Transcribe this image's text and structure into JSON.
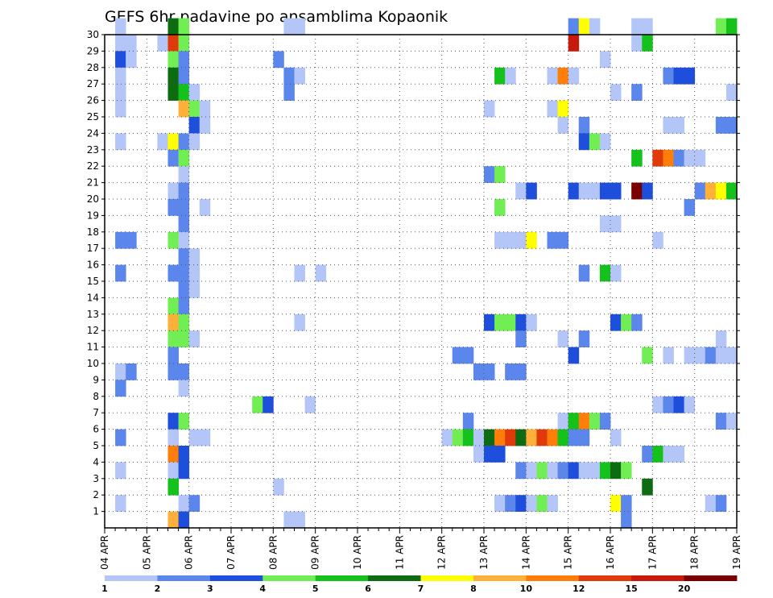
{
  "chart_data": {
    "type": "heatmap",
    "title": "GEFS 6hr padavine po ansamblima Kopaonik",
    "xlabel": "",
    "ylabel": "",
    "x_tick_labels": [
      "04 APR",
      "05 APR",
      "06 APR",
      "07 APR",
      "08 APR",
      "09 APR",
      "10 APR",
      "11 APR",
      "12 APR",
      "13 APR",
      "14 APR",
      "15 APR",
      "16 APR",
      "17 APR",
      "18 APR",
      "19 APR"
    ],
    "xlim_steps": [
      0,
      60
    ],
    "y_tick_labels": [
      "1",
      "2",
      "3",
      "4",
      "5",
      "6",
      "7",
      "8",
      "9",
      "10",
      "11",
      "12",
      "13",
      "14",
      "15",
      "16",
      "17",
      "18",
      "19",
      "20",
      "21",
      "22",
      "23",
      "24",
      "25",
      "26",
      "27",
      "28",
      "29",
      "30"
    ],
    "ylim": [
      0,
      30
    ],
    "grid": true,
    "colorbar": {
      "bounds": [
        1,
        2,
        3,
        4,
        5,
        6,
        7,
        8,
        10,
        12,
        15,
        20
      ],
      "labels": [
        "1",
        "2",
        "3",
        "4",
        "5",
        "6",
        "7",
        "8",
        "10",
        "12",
        "15",
        "20"
      ],
      "colors": [
        "#b3c6f7",
        "#5b86ec",
        "#1e4fdc",
        "#72ee55",
        "#14c21b",
        "#0d6b12",
        "#ffff00",
        "#ffb03b",
        "#ff7e0a",
        "#e03a0a",
        "#c81a0a",
        "#7a0000"
      ]
    },
    "cells": [
      {
        "m": 30,
        "t": 1,
        "c": 1
      },
      {
        "m": 30,
        "t": 6,
        "c": 6
      },
      {
        "m": 30,
        "t": 7,
        "c": 4
      },
      {
        "m": 30,
        "t": 17,
        "c": 1
      },
      {
        "m": 30,
        "t": 18,
        "c": 1
      },
      {
        "m": 30,
        "t": 44,
        "c": 2
      },
      {
        "m": 30,
        "t": 45,
        "c": 7
      },
      {
        "m": 30,
        "t": 46,
        "c": 1
      },
      {
        "m": 30,
        "t": 50,
        "c": 1
      },
      {
        "m": 30,
        "t": 51,
        "c": 1
      },
      {
        "m": 30,
        "t": 58,
        "c": 4
      },
      {
        "m": 30,
        "t": 59,
        "c": 5
      },
      {
        "m": 29,
        "t": 1,
        "c": 1
      },
      {
        "m": 29,
        "t": 2,
        "c": 1
      },
      {
        "m": 29,
        "t": 5,
        "c": 1
      },
      {
        "m": 29,
        "t": 6,
        "c": 10
      },
      {
        "m": 29,
        "t": 7,
        "c": 4
      },
      {
        "m": 29,
        "t": 44,
        "c": 11
      },
      {
        "m": 29,
        "t": 50,
        "c": 1
      },
      {
        "m": 29,
        "t": 51,
        "c": 5
      },
      {
        "m": 28,
        "t": 1,
        "c": 3
      },
      {
        "m": 28,
        "t": 2,
        "c": 1
      },
      {
        "m": 28,
        "t": 6,
        "c": 4
      },
      {
        "m": 28,
        "t": 7,
        "c": 2
      },
      {
        "m": 28,
        "t": 16,
        "c": 2
      },
      {
        "m": 28,
        "t": 47,
        "c": 1
      },
      {
        "m": 27,
        "t": 1,
        "c": 1
      },
      {
        "m": 27,
        "t": 6,
        "c": 6
      },
      {
        "m": 27,
        "t": 7,
        "c": 2
      },
      {
        "m": 27,
        "t": 17,
        "c": 2
      },
      {
        "m": 27,
        "t": 18,
        "c": 1
      },
      {
        "m": 27,
        "t": 37,
        "c": 5
      },
      {
        "m": 27,
        "t": 38,
        "c": 1
      },
      {
        "m": 27,
        "t": 42,
        "c": 1
      },
      {
        "m": 27,
        "t": 43,
        "c": 9
      },
      {
        "m": 27,
        "t": 44,
        "c": 1
      },
      {
        "m": 27,
        "t": 53,
        "c": 2
      },
      {
        "m": 27,
        "t": 54,
        "c": 3
      },
      {
        "m": 27,
        "t": 55,
        "c": 3
      },
      {
        "m": 26,
        "t": 1,
        "c": 1
      },
      {
        "m": 26,
        "t": 6,
        "c": 6
      },
      {
        "m": 26,
        "t": 7,
        "c": 5
      },
      {
        "m": 26,
        "t": 8,
        "c": 1
      },
      {
        "m": 26,
        "t": 17,
        "c": 2
      },
      {
        "m": 26,
        "t": 48,
        "c": 1
      },
      {
        "m": 26,
        "t": 50,
        "c": 2
      },
      {
        "m": 26,
        "t": 59,
        "c": 1
      },
      {
        "m": 25,
        "t": 1,
        "c": 1
      },
      {
        "m": 25,
        "t": 7,
        "c": 8
      },
      {
        "m": 25,
        "t": 8,
        "c": 4
      },
      {
        "m": 25,
        "t": 9,
        "c": 1
      },
      {
        "m": 25,
        "t": 36,
        "c": 1
      },
      {
        "m": 25,
        "t": 42,
        "c": 1
      },
      {
        "m": 25,
        "t": 43,
        "c": 7
      },
      {
        "m": 24,
        "t": 8,
        "c": 3
      },
      {
        "m": 24,
        "t": 9,
        "c": 1
      },
      {
        "m": 24,
        "t": 43,
        "c": 1
      },
      {
        "m": 24,
        "t": 45,
        "c": 2
      },
      {
        "m": 24,
        "t": 53,
        "c": 1
      },
      {
        "m": 24,
        "t": 54,
        "c": 1
      },
      {
        "m": 24,
        "t": 58,
        "c": 2
      },
      {
        "m": 24,
        "t": 59,
        "c": 2
      },
      {
        "m": 23,
        "t": 1,
        "c": 1
      },
      {
        "m": 23,
        "t": 5,
        "c": 1
      },
      {
        "m": 23,
        "t": 6,
        "c": 7
      },
      {
        "m": 23,
        "t": 7,
        "c": 2
      },
      {
        "m": 23,
        "t": 8,
        "c": 1
      },
      {
        "m": 23,
        "t": 45,
        "c": 3
      },
      {
        "m": 23,
        "t": 46,
        "c": 4
      },
      {
        "m": 23,
        "t": 47,
        "c": 1
      },
      {
        "m": 22,
        "t": 6,
        "c": 2
      },
      {
        "m": 22,
        "t": 7,
        "c": 4
      },
      {
        "m": 22,
        "t": 50,
        "c": 5
      },
      {
        "m": 22,
        "t": 52,
        "c": 10
      },
      {
        "m": 22,
        "t": 53,
        "c": 9
      },
      {
        "m": 22,
        "t": 54,
        "c": 2
      },
      {
        "m": 22,
        "t": 55,
        "c": 1
      },
      {
        "m": 22,
        "t": 56,
        "c": 1
      },
      {
        "m": 21,
        "t": 7,
        "c": 1
      },
      {
        "m": 21,
        "t": 36,
        "c": 2
      },
      {
        "m": 21,
        "t": 37,
        "c": 4
      },
      {
        "m": 20,
        "t": 6,
        "c": 1
      },
      {
        "m": 20,
        "t": 7,
        "c": 2
      },
      {
        "m": 20,
        "t": 39,
        "c": 1
      },
      {
        "m": 20,
        "t": 40,
        "c": 3
      },
      {
        "m": 20,
        "t": 44,
        "c": 3
      },
      {
        "m": 20,
        "t": 45,
        "c": 1
      },
      {
        "m": 20,
        "t": 46,
        "c": 1
      },
      {
        "m": 20,
        "t": 47,
        "c": 3
      },
      {
        "m": 20,
        "t": 48,
        "c": 3
      },
      {
        "m": 20,
        "t": 50,
        "c": 12
      },
      {
        "m": 20,
        "t": 51,
        "c": 3
      },
      {
        "m": 20,
        "t": 56,
        "c": 2
      },
      {
        "m": 20,
        "t": 57,
        "c": 8
      },
      {
        "m": 20,
        "t": 58,
        "c": 7
      },
      {
        "m": 20,
        "t": 59,
        "c": 5
      },
      {
        "m": 19,
        "t": 6,
        "c": 2
      },
      {
        "m": 19,
        "t": 7,
        "c": 2
      },
      {
        "m": 19,
        "t": 9,
        "c": 1
      },
      {
        "m": 19,
        "t": 37,
        "c": 4
      },
      {
        "m": 19,
        "t": 55,
        "c": 2
      },
      {
        "m": 18,
        "t": 7,
        "c": 2
      },
      {
        "m": 18,
        "t": 47,
        "c": 1
      },
      {
        "m": 18,
        "t": 48,
        "c": 1
      },
      {
        "m": 17,
        "t": 1,
        "c": 2
      },
      {
        "m": 17,
        "t": 2,
        "c": 2
      },
      {
        "m": 17,
        "t": 6,
        "c": 4
      },
      {
        "m": 17,
        "t": 7,
        "c": 1
      },
      {
        "m": 17,
        "t": 37,
        "c": 1
      },
      {
        "m": 17,
        "t": 38,
        "c": 1
      },
      {
        "m": 17,
        "t": 39,
        "c": 1
      },
      {
        "m": 17,
        "t": 40,
        "c": 7
      },
      {
        "m": 17,
        "t": 42,
        "c": 2
      },
      {
        "m": 17,
        "t": 43,
        "c": 2
      },
      {
        "m": 17,
        "t": 52,
        "c": 1
      },
      {
        "m": 16,
        "t": 7,
        "c": 2
      },
      {
        "m": 16,
        "t": 8,
        "c": 1
      },
      {
        "m": 15,
        "t": 1,
        "c": 2
      },
      {
        "m": 15,
        "t": 6,
        "c": 2
      },
      {
        "m": 15,
        "t": 7,
        "c": 2
      },
      {
        "m": 15,
        "t": 8,
        "c": 1
      },
      {
        "m": 15,
        "t": 18,
        "c": 1
      },
      {
        "m": 15,
        "t": 20,
        "c": 1
      },
      {
        "m": 15,
        "t": 45,
        "c": 2
      },
      {
        "m": 15,
        "t": 47,
        "c": 5
      },
      {
        "m": 15,
        "t": 48,
        "c": 1
      },
      {
        "m": 14,
        "t": 7,
        "c": 2
      },
      {
        "m": 14,
        "t": 8,
        "c": 1
      },
      {
        "m": 13,
        "t": 6,
        "c": 4
      },
      {
        "m": 13,
        "t": 7,
        "c": 2
      },
      {
        "m": 12,
        "t": 6,
        "c": 8
      },
      {
        "m": 12,
        "t": 7,
        "c": 4
      },
      {
        "m": 12,
        "t": 18,
        "c": 1
      },
      {
        "m": 12,
        "t": 36,
        "c": 3
      },
      {
        "m": 12,
        "t": 37,
        "c": 4
      },
      {
        "m": 12,
        "t": 38,
        "c": 4
      },
      {
        "m": 12,
        "t": 39,
        "c": 3
      },
      {
        "m": 12,
        "t": 40,
        "c": 1
      },
      {
        "m": 12,
        "t": 48,
        "c": 3
      },
      {
        "m": 12,
        "t": 49,
        "c": 4
      },
      {
        "m": 12,
        "t": 50,
        "c": 2
      },
      {
        "m": 11,
        "t": 6,
        "c": 4
      },
      {
        "m": 11,
        "t": 7,
        "c": 4
      },
      {
        "m": 11,
        "t": 8,
        "c": 1
      },
      {
        "m": 11,
        "t": 39,
        "c": 2
      },
      {
        "m": 11,
        "t": 43,
        "c": 1
      },
      {
        "m": 11,
        "t": 45,
        "c": 2
      },
      {
        "m": 11,
        "t": 58,
        "c": 1
      },
      {
        "m": 10,
        "t": 6,
        "c": 2
      },
      {
        "m": 10,
        "t": 33,
        "c": 2
      },
      {
        "m": 10,
        "t": 34,
        "c": 2
      },
      {
        "m": 10,
        "t": 44,
        "c": 3
      },
      {
        "m": 10,
        "t": 51,
        "c": 4
      },
      {
        "m": 10,
        "t": 53,
        "c": 1
      },
      {
        "m": 10,
        "t": 55,
        "c": 1
      },
      {
        "m": 10,
        "t": 56,
        "c": 1
      },
      {
        "m": 10,
        "t": 57,
        "c": 2
      },
      {
        "m": 10,
        "t": 58,
        "c": 1
      },
      {
        "m": 10,
        "t": 59,
        "c": 1
      },
      {
        "m": 9,
        "t": 1,
        "c": 1
      },
      {
        "m": 9,
        "t": 2,
        "c": 2
      },
      {
        "m": 9,
        "t": 6,
        "c": 2
      },
      {
        "m": 9,
        "t": 7,
        "c": 2
      },
      {
        "m": 9,
        "t": 35,
        "c": 2
      },
      {
        "m": 9,
        "t": 36,
        "c": 2
      },
      {
        "m": 9,
        "t": 38,
        "c": 2
      },
      {
        "m": 9,
        "t": 39,
        "c": 2
      },
      {
        "m": 8,
        "t": 1,
        "c": 2
      },
      {
        "m": 8,
        "t": 7,
        "c": 1
      },
      {
        "m": 7,
        "t": 14,
        "c": 4
      },
      {
        "m": 7,
        "t": 15,
        "c": 3
      },
      {
        "m": 7,
        "t": 19,
        "c": 1
      },
      {
        "m": 7,
        "t": 52,
        "c": 1
      },
      {
        "m": 7,
        "t": 53,
        "c": 2
      },
      {
        "m": 7,
        "t": 54,
        "c": 3
      },
      {
        "m": 7,
        "t": 55,
        "c": 1
      },
      {
        "m": 6,
        "t": 6,
        "c": 3
      },
      {
        "m": 6,
        "t": 7,
        "c": 4
      },
      {
        "m": 6,
        "t": 34,
        "c": 2
      },
      {
        "m": 6,
        "t": 43,
        "c": 1
      },
      {
        "m": 6,
        "t": 44,
        "c": 5
      },
      {
        "m": 6,
        "t": 45,
        "c": 9
      },
      {
        "m": 6,
        "t": 46,
        "c": 4
      },
      {
        "m": 6,
        "t": 47,
        "c": 2
      },
      {
        "m": 6,
        "t": 58,
        "c": 2
      },
      {
        "m": 6,
        "t": 59,
        "c": 1
      },
      {
        "m": 5,
        "t": 1,
        "c": 2
      },
      {
        "m": 5,
        "t": 6,
        "c": 1
      },
      {
        "m": 5,
        "t": 8,
        "c": 1
      },
      {
        "m": 5,
        "t": 9,
        "c": 1
      },
      {
        "m": 5,
        "t": 32,
        "c": 1
      },
      {
        "m": 5,
        "t": 33,
        "c": 4
      },
      {
        "m": 5,
        "t": 34,
        "c": 5
      },
      {
        "m": 5,
        "t": 35,
        "c": 1
      },
      {
        "m": 5,
        "t": 36,
        "c": 6
      },
      {
        "m": 5,
        "t": 37,
        "c": 9
      },
      {
        "m": 5,
        "t": 38,
        "c": 10
      },
      {
        "m": 5,
        "t": 39,
        "c": 6
      },
      {
        "m": 5,
        "t": 40,
        "c": 8
      },
      {
        "m": 5,
        "t": 41,
        "c": 10
      },
      {
        "m": 5,
        "t": 42,
        "c": 9
      },
      {
        "m": 5,
        "t": 43,
        "c": 5
      },
      {
        "m": 5,
        "t": 44,
        "c": 2
      },
      {
        "m": 5,
        "t": 45,
        "c": 2
      },
      {
        "m": 5,
        "t": 48,
        "c": 1
      },
      {
        "m": 4,
        "t": 6,
        "c": 9
      },
      {
        "m": 4,
        "t": 7,
        "c": 3
      },
      {
        "m": 4,
        "t": 35,
        "c": 1
      },
      {
        "m": 4,
        "t": 36,
        "c": 3
      },
      {
        "m": 4,
        "t": 37,
        "c": 3
      },
      {
        "m": 4,
        "t": 51,
        "c": 2
      },
      {
        "m": 4,
        "t": 52,
        "c": 5
      },
      {
        "m": 4,
        "t": 53,
        "c": 1
      },
      {
        "m": 4,
        "t": 54,
        "c": 1
      },
      {
        "m": 3,
        "t": 1,
        "c": 1
      },
      {
        "m": 3,
        "t": 6,
        "c": 1
      },
      {
        "m": 3,
        "t": 7,
        "c": 3
      },
      {
        "m": 3,
        "t": 39,
        "c": 2
      },
      {
        "m": 3,
        "t": 40,
        "c": 1
      },
      {
        "m": 3,
        "t": 41,
        "c": 4
      },
      {
        "m": 3,
        "t": 42,
        "c": 1
      },
      {
        "m": 3,
        "t": 43,
        "c": 2
      },
      {
        "m": 3,
        "t": 44,
        "c": 3
      },
      {
        "m": 3,
        "t": 45,
        "c": 1
      },
      {
        "m": 3,
        "t": 46,
        "c": 1
      },
      {
        "m": 3,
        "t": 47,
        "c": 5
      },
      {
        "m": 3,
        "t": 48,
        "c": 6
      },
      {
        "m": 3,
        "t": 49,
        "c": 4
      },
      {
        "m": 2,
        "t": 6,
        "c": 5
      },
      {
        "m": 2,
        "t": 16,
        "c": 1
      },
      {
        "m": 2,
        "t": 51,
        "c": 6
      },
      {
        "m": 1,
        "t": 1,
        "c": 1
      },
      {
        "m": 1,
        "t": 7,
        "c": 1
      },
      {
        "m": 1,
        "t": 8,
        "c": 2
      },
      {
        "m": 1,
        "t": 37,
        "c": 1
      },
      {
        "m": 1,
        "t": 38,
        "c": 2
      },
      {
        "m": 1,
        "t": 39,
        "c": 3
      },
      {
        "m": 1,
        "t": 40,
        "c": 1
      },
      {
        "m": 1,
        "t": 41,
        "c": 4
      },
      {
        "m": 1,
        "t": 42,
        "c": 1
      },
      {
        "m": 1,
        "t": 48,
        "c": 7
      },
      {
        "m": 1,
        "t": 49,
        "c": 2
      },
      {
        "m": 1,
        "t": 57,
        "c": 1
      },
      {
        "m": 1,
        "t": 58,
        "c": 2
      },
      {
        "m": 0,
        "t": 6,
        "c": 8
      },
      {
        "m": 0,
        "t": 7,
        "c": 3
      },
      {
        "m": 0,
        "t": 17,
        "c": 1
      },
      {
        "m": 0,
        "t": 18,
        "c": 1
      },
      {
        "m": 0,
        "t": 49,
        "c": 2
      }
    ]
  }
}
